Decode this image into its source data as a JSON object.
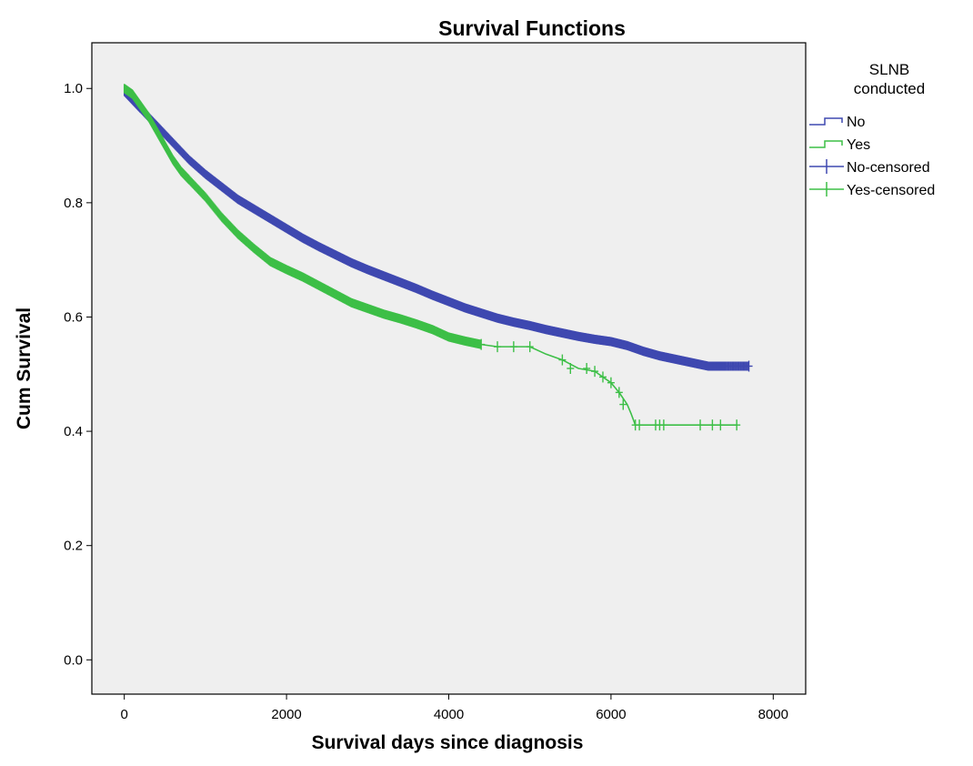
{
  "chart_data": {
    "type": "line",
    "title": "Survival Functions",
    "xlabel": "Survival days since diagnosis",
    "ylabel": "Cum Survival",
    "xlim": [
      -400,
      8400
    ],
    "ylim": [
      -0.06,
      1.08
    ],
    "x_ticks": [
      "0",
      "2000",
      "4000",
      "6000",
      "8000"
    ],
    "y_ticks": [
      "0.0",
      "0.2",
      "0.4",
      "0.6",
      "0.8",
      "1.0"
    ],
    "grid": false,
    "plot_background": "#efefef",
    "legend": {
      "title_lines": [
        "SLNB",
        "conducted"
      ],
      "placement": "right",
      "entries": [
        {
          "label": "No",
          "kind": "step",
          "series": "No"
        },
        {
          "label": "Yes",
          "kind": "step",
          "series": "Yes"
        },
        {
          "label": "No-censored",
          "kind": "censor",
          "series": "No"
        },
        {
          "label": "Yes-censored",
          "kind": "censor",
          "series": "Yes"
        }
      ]
    },
    "series": [
      {
        "name": "No",
        "color": "#3f48b0",
        "x": [
          0,
          100,
          200,
          400,
          600,
          800,
          1000,
          1200,
          1400,
          1600,
          1800,
          2000,
          2200,
          2400,
          2600,
          2800,
          3000,
          3200,
          3400,
          3600,
          3800,
          4000,
          4200,
          4400,
          4600,
          4800,
          5000,
          5200,
          5400,
          5600,
          5800,
          6000,
          6200,
          6400,
          6600,
          6800,
          7000,
          7200,
          7400,
          7700
        ],
        "y": [
          0.995,
          0.98,
          0.965,
          0.935,
          0.905,
          0.875,
          0.85,
          0.828,
          0.806,
          0.789,
          0.772,
          0.755,
          0.738,
          0.723,
          0.709,
          0.695,
          0.683,
          0.672,
          0.661,
          0.65,
          0.638,
          0.627,
          0.616,
          0.607,
          0.598,
          0.591,
          0.585,
          0.578,
          0.572,
          0.566,
          0.561,
          0.557,
          0.55,
          0.54,
          0.532,
          0.526,
          0.52,
          0.514,
          0.514,
          0.514
        ],
        "censored_x": [
          7700
        ],
        "censored_y": [
          0.514
        ]
      },
      {
        "name": "Yes",
        "color": "#3dbf47",
        "x": [
          0,
          100,
          200,
          300,
          400,
          500,
          600,
          700,
          800,
          1000,
          1200,
          1400,
          1600,
          1800,
          2000,
          2200,
          2400,
          2600,
          2800,
          3000,
          3200,
          3400,
          3600,
          3800,
          4000,
          4200,
          4400,
          4600,
          4800,
          5000,
          5200,
          5400,
          5600,
          5800,
          5900,
          6000,
          6100,
          6200,
          6250,
          6300,
          6500,
          7000,
          7550
        ],
        "y": [
          1.0,
          0.99,
          0.97,
          0.95,
          0.925,
          0.9,
          0.875,
          0.855,
          0.84,
          0.81,
          0.775,
          0.745,
          0.72,
          0.697,
          0.683,
          0.67,
          0.655,
          0.64,
          0.625,
          0.615,
          0.605,
          0.597,
          0.588,
          0.578,
          0.565,
          0.558,
          0.552,
          0.548,
          0.548,
          0.548,
          0.535,
          0.525,
          0.51,
          0.505,
          0.495,
          0.485,
          0.468,
          0.447,
          0.43,
          0.411,
          0.411,
          0.411,
          0.411
        ],
        "censored_x": [
          4400,
          4600,
          4800,
          5000,
          5400,
          5500,
          5700,
          5800,
          5900,
          6000,
          6100,
          6150,
          6300,
          6350,
          6550,
          6600,
          6650,
          7100,
          7250,
          7350,
          7550
        ],
        "censored_y": [
          0.552,
          0.548,
          0.548,
          0.548,
          0.525,
          0.51,
          0.51,
          0.505,
          0.495,
          0.485,
          0.468,
          0.447,
          0.411,
          0.411,
          0.411,
          0.411,
          0.411,
          0.411,
          0.411,
          0.411,
          0.411
        ]
      }
    ]
  }
}
